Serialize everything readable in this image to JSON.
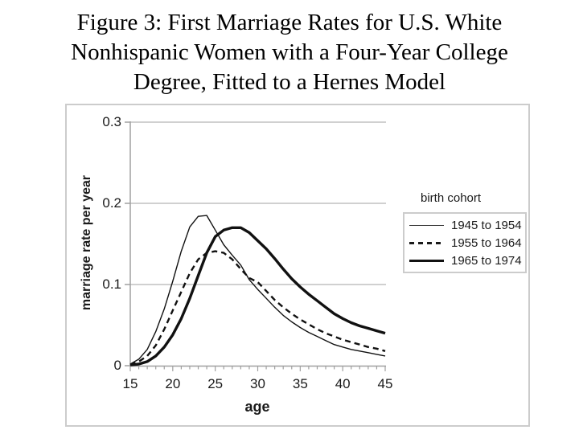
{
  "figure": {
    "title_lines": [
      "Figure 3:  First Marriage Rates for U.S. White",
      "Nonhispanic Women with a Four-Year College",
      "Degree, Fitted to a Hernes Model"
    ]
  },
  "chart_data": {
    "type": "line",
    "title": "Figure 3: First Marriage Rates for U.S. White Nonhispanic Women with a Four-Year College Degree, Fitted to a Hernes Model",
    "xlabel": "age",
    "ylabel": "marriage rate per year",
    "xlim": [
      15,
      45
    ],
    "ylim": [
      0,
      0.3
    ],
    "x_ticks": [
      15,
      20,
      25,
      30,
      35,
      40,
      45
    ],
    "x_minor_tick_step": 1,
    "y_ticks": [
      0,
      0.1,
      0.2,
      0.3
    ],
    "y_tick_labels": [
      "0",
      "0.1",
      "0.2",
      "0.3"
    ],
    "grid": "horizontal-at-0.1-0.2-0.3",
    "legend_title": "birth cohort",
    "legend_position": "right",
    "x": [
      15,
      16,
      17,
      18,
      19,
      20,
      21,
      22,
      23,
      24,
      25,
      26,
      27,
      28,
      29,
      30,
      31,
      32,
      33,
      34,
      35,
      36,
      37,
      38,
      39,
      40,
      41,
      42,
      43,
      44,
      45
    ],
    "series": [
      {
        "name": "1945 to 1954",
        "style": "thin-solid",
        "values": [
          0.002,
          0.008,
          0.02,
          0.042,
          0.07,
          0.104,
          0.141,
          0.171,
          0.184,
          0.185,
          0.167,
          0.149,
          0.136,
          0.124,
          0.106,
          0.094,
          0.083,
          0.072,
          0.062,
          0.054,
          0.047,
          0.041,
          0.036,
          0.031,
          0.026,
          0.023,
          0.02,
          0.018,
          0.016,
          0.014,
          0.012
        ]
      },
      {
        "name": "1955 to 1964",
        "style": "dashed",
        "values": [
          0.001,
          0.005,
          0.012,
          0.025,
          0.045,
          0.068,
          0.091,
          0.114,
          0.131,
          0.139,
          0.141,
          0.139,
          0.131,
          0.119,
          0.108,
          0.103,
          0.092,
          0.081,
          0.072,
          0.064,
          0.057,
          0.051,
          0.045,
          0.04,
          0.036,
          0.032,
          0.029,
          0.026,
          0.023,
          0.021,
          0.018
        ]
      },
      {
        "name": "1965 to 1974",
        "style": "thick-solid",
        "values": [
          0.001,
          0.002,
          0.005,
          0.012,
          0.023,
          0.038,
          0.058,
          0.083,
          0.111,
          0.139,
          0.159,
          0.167,
          0.17,
          0.17,
          0.164,
          0.154,
          0.144,
          0.132,
          0.119,
          0.107,
          0.097,
          0.088,
          0.08,
          0.072,
          0.064,
          0.058,
          0.053,
          0.049,
          0.046,
          0.043,
          0.04
        ]
      }
    ]
  },
  "colors": {
    "curve": "#111111",
    "grid": "#c0c0c0",
    "axis": "#a0a0a0",
    "frame": "#cccccc",
    "text": "#1a1a1a"
  }
}
